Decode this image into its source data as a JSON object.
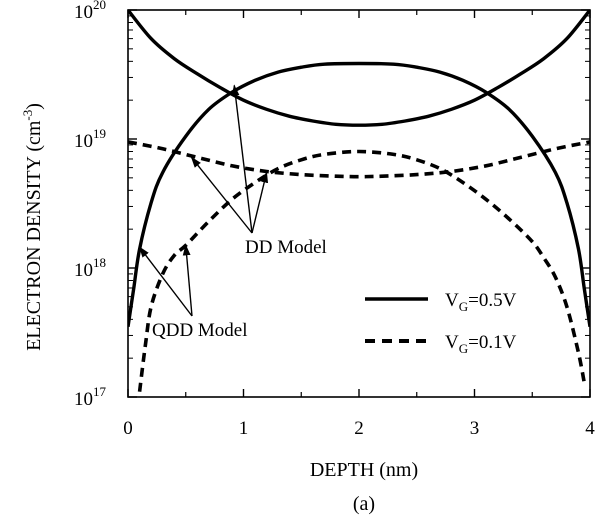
{
  "chart_data": {
    "type": "line",
    "caption": "(a)",
    "xlabel": "DEPTH (nm)",
    "ylabel": {
      "main": "ELECTRON DENSITY (cm",
      "exp": "-3",
      "close": ")"
    },
    "xlim": [
      0,
      4
    ],
    "ylim": [
      1e+17,
      1e+20
    ],
    "yscale": "log",
    "xticks": [
      {
        "value": 0,
        "label": "0"
      },
      {
        "value": 1,
        "label": "1"
      },
      {
        "value": 2,
        "label": "2"
      },
      {
        "value": 3,
        "label": "3"
      },
      {
        "value": 4,
        "label": "4"
      }
    ],
    "yticks": [
      {
        "value": 1e+17,
        "base": "10",
        "exp": "17"
      },
      {
        "value": 1e+18,
        "base": "10",
        "exp": "18"
      },
      {
        "value": 1e+19,
        "base": "10",
        "exp": "19"
      },
      {
        "value": 1e+20,
        "base": "10",
        "exp": "20"
      }
    ],
    "legend": {
      "position": "right",
      "entries": [
        {
          "series": "vg05",
          "prefix": "V",
          "sub": "G",
          "suffix": "=0.5V",
          "style": "solid"
        },
        {
          "series": "vg01",
          "prefix": "V",
          "sub": "G",
          "suffix": "=0.1V",
          "style": "dashed"
        }
      ]
    },
    "annotations": [
      {
        "text": "DD Model",
        "targets": [
          [
            0.92,
            2.6e+19
          ],
          [
            0.55,
            7.2e+18
          ],
          [
            1.2,
            5.5e+18
          ]
        ]
      },
      {
        "text": "QDD Model",
        "targets": [
          [
            0.1,
            1.45e+18
          ],
          [
            0.5,
            1.5e+18
          ]
        ]
      }
    ],
    "series": [
      {
        "id": "vg05_dd",
        "group": "vg05",
        "style": "solid",
        "x": [
          0,
          0.2,
          0.4,
          0.6,
          0.8,
          1.0,
          1.2,
          1.4,
          1.6,
          1.8,
          2.0,
          2.2,
          2.4,
          2.6,
          2.8,
          3.0,
          3.2,
          3.4,
          3.6,
          3.8,
          4.0
        ],
        "y": [
          1e+20,
          6e+19,
          4.2e+19,
          3.2e+19,
          2.5e+19,
          2e+19,
          1.7e+19,
          1.5e+19,
          1.38e+19,
          1.3e+19,
          1.28e+19,
          1.3e+19,
          1.38e+19,
          1.5e+19,
          1.7e+19,
          2e+19,
          2.5e+19,
          3.2e+19,
          4.2e+19,
          6e+19,
          1e+20
        ]
      },
      {
        "id": "vg05_qdd",
        "group": "vg05",
        "style": "solid",
        "x": [
          0,
          0.05,
          0.1,
          0.2,
          0.3,
          0.5,
          0.7,
          0.9,
          1.1,
          1.3,
          1.5,
          1.7,
          2.0,
          2.3,
          2.5,
          2.7,
          2.9,
          3.1,
          3.3,
          3.5,
          3.7,
          3.8,
          3.9,
          3.95,
          4.0
        ],
        "y": [
          3.5e+17,
          7e+17,
          1.4e+18,
          3.2e+18,
          5.5e+18,
          1.05e+19,
          1.7e+19,
          2.3e+19,
          2.85e+19,
          3.3e+19,
          3.6e+19,
          3.8e+19,
          3.85e+19,
          3.8e+19,
          3.6e+19,
          3.3e+19,
          2.85e+19,
          2.3e+19,
          1.7e+19,
          1.05e+19,
          5.5e+18,
          3.2e+18,
          1.4e+18,
          7e+17,
          3.5e+17
        ]
      },
      {
        "id": "vg01_dd",
        "group": "vg01",
        "style": "dashed",
        "x": [
          0,
          0.3,
          0.6,
          0.9,
          1.2,
          1.5,
          1.8,
          2.0,
          2.2,
          2.5,
          2.8,
          3.1,
          3.4,
          3.7,
          4.0
        ],
        "y": [
          9.5e+18,
          8.4e+18,
          7.2e+18,
          6.2e+18,
          5.6e+18,
          5.3e+18,
          5.15e+18,
          5.1e+18,
          5.15e+18,
          5.3e+18,
          5.6e+18,
          6.2e+18,
          7.2e+18,
          8.4e+18,
          9.5e+18
        ]
      },
      {
        "id": "vg01_qdd",
        "group": "vg01",
        "style": "dashed",
        "x": [
          0.1,
          0.15,
          0.2,
          0.3,
          0.4,
          0.5,
          0.7,
          0.9,
          1.1,
          1.3,
          1.5,
          1.7,
          2.0,
          2.3,
          2.5,
          2.7,
          2.9,
          3.1,
          3.3,
          3.5,
          3.6,
          3.7,
          3.8,
          3.9,
          3.95
        ],
        "y": [
          1.1e+17,
          2.5e+17,
          5e+17,
          9e+17,
          1.25e+18,
          1.5e+18,
          2.3e+18,
          3.4e+18,
          4.6e+18,
          5.9e+18,
          6.9e+18,
          7.6e+18,
          8e+18,
          7.6e+18,
          6.9e+18,
          5.9e+18,
          4.6e+18,
          3.4e+18,
          2.4e+18,
          1.6e+18,
          1.2e+18,
          8.5e+17,
          5e+17,
          2.2e+17,
          1.3e+17
        ]
      }
    ]
  }
}
